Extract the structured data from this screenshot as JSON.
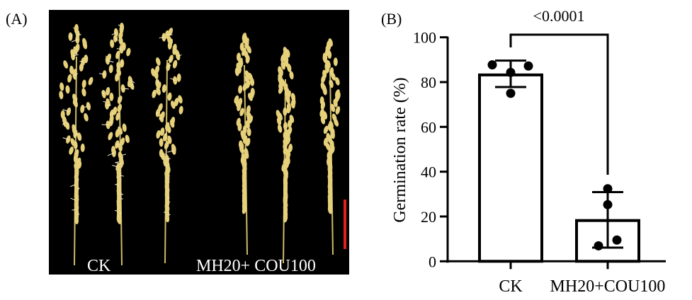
{
  "panel_a": {
    "label": "(A)",
    "group_labels": [
      "CK",
      "MH20+ COU100"
    ],
    "scale_bar_color": "#e0201c",
    "background_color": "#000000",
    "panicle_color": "#e6d07a"
  },
  "panel_b": {
    "label": "(B)"
  },
  "chart_data": {
    "type": "bar",
    "categories": [
      "CK",
      "MH20+COU100"
    ],
    "values": [
      83.2,
      18.2
    ],
    "error_low": [
      77.8,
      6.1
    ],
    "error_high": [
      89.6,
      30.9
    ],
    "points": [
      [
        87.7,
        87.2,
        84.3,
        75.0
      ],
      [
        32.4,
        25.3,
        9.5,
        6.9
      ]
    ],
    "ylabel": "Germination rate (%)",
    "xlabel": "",
    "ylim": [
      0,
      100
    ],
    "yticks": [
      "0",
      "20",
      "40",
      "60",
      "80",
      "100"
    ],
    "significance": "<0.0001",
    "bar_fill": "#ffffff",
    "bar_stroke": "#000000",
    "grid": false
  }
}
